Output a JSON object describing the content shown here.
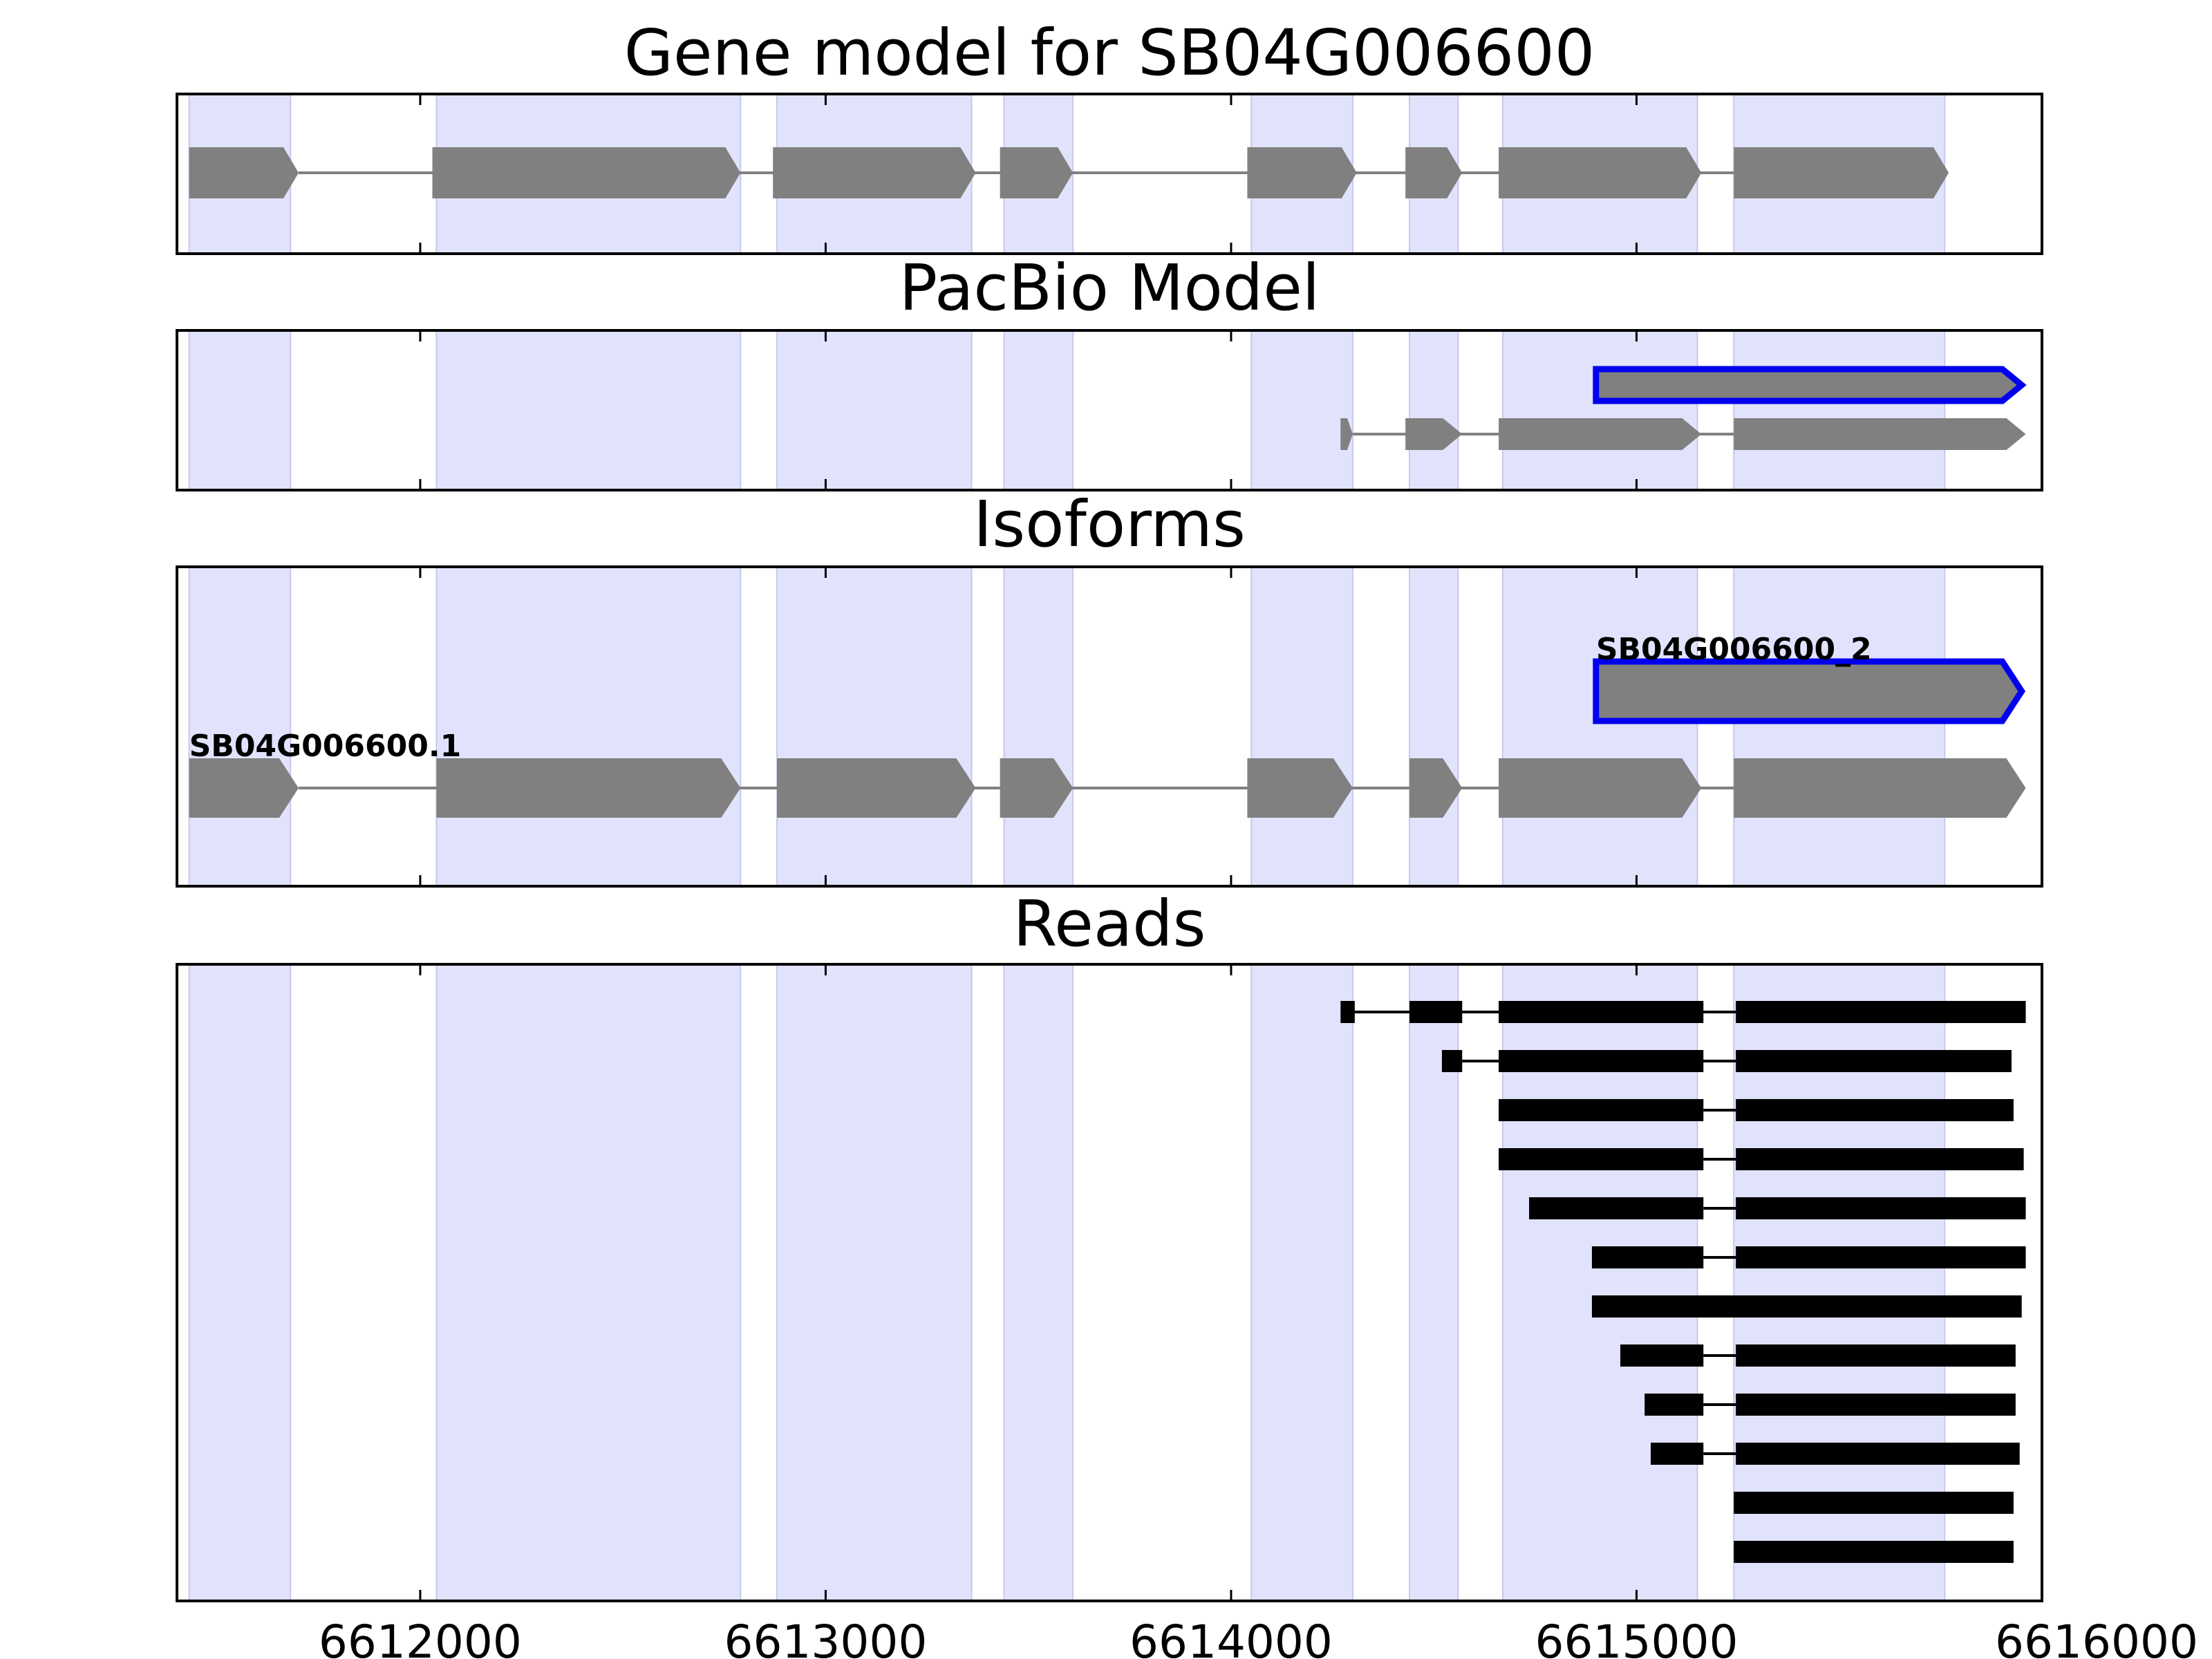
{
  "chart_data": {
    "type": "gene-track",
    "x_range": [
      6611400,
      6616000
    ],
    "x_ticks": [
      6612000,
      6613000,
      6614000,
      6615000,
      6616000
    ],
    "x_tick_labels": [
      "6612000",
      "6613000",
      "6614000",
      "6615000",
      "6616000"
    ],
    "exon_shading": [
      [
        6611430,
        6611680
      ],
      [
        6612040,
        6612790
      ],
      [
        6612880,
        6613360
      ],
      [
        6613440,
        6613610
      ],
      [
        6614050,
        6614300
      ],
      [
        6614440,
        6614560
      ],
      [
        6614670,
        6615150
      ],
      [
        6615240,
        6615760
      ]
    ],
    "colors": {
      "shading": "#e1e3fc",
      "shading_edge": "#c5c8ec",
      "exon": "#808080",
      "intron": "#808080",
      "highlight": "#0000ee",
      "read": "#000000"
    },
    "panels": [
      {
        "id": "gene-model",
        "title": "Gene model for SB04G006600",
        "tracks": [
          {
            "exons": [
              [
                6611430,
                6611700
              ],
              [
                6612030,
                6612790
              ],
              [
                6612870,
                6613370
              ],
              [
                6613430,
                6613610
              ],
              [
                6614040,
                6614310
              ],
              [
                6614430,
                6614570
              ],
              [
                6614660,
                6615160
              ],
              [
                6615240,
                6615770
              ]
            ]
          }
        ]
      },
      {
        "id": "pacbio-model",
        "title": "PacBio Model",
        "tracks": [
          {
            "highlight": true,
            "exons": [
              [
                6614900,
                6615950
              ]
            ]
          },
          {
            "exons": [
              [
                6614270,
                6614300
              ],
              [
                6614430,
                6614570
              ],
              [
                6614660,
                6615160
              ],
              [
                6615240,
                6615960
              ]
            ]
          }
        ]
      },
      {
        "id": "isoforms",
        "title": "Isoforms",
        "tracks": [
          {
            "name": "SB04G006600_2",
            "highlight": true,
            "exons": [
              [
                6614900,
                6615950
              ]
            ]
          },
          {
            "name": "SB04G006600.1",
            "exons": [
              [
                6611430,
                6611700
              ],
              [
                6612040,
                6612790
              ],
              [
                6612880,
                6613370
              ],
              [
                6613430,
                6613610
              ],
              [
                6614040,
                6614300
              ],
              [
                6614440,
                6614570
              ],
              [
                6614660,
                6615160
              ],
              [
                6615240,
                6615960
              ]
            ]
          }
        ]
      },
      {
        "id": "reads",
        "title": "Reads",
        "tracks": [
          {
            "blocks": [
              [
                6614270,
                6614305
              ],
              [
                6614440,
                6614570
              ],
              [
                6614660,
                6615165
              ],
              [
                6615245,
                6615960
              ]
            ]
          },
          {
            "blocks": [
              [
                6614520,
                6614570
              ],
              [
                6614660,
                6615165
              ],
              [
                6615245,
                6615925
              ]
            ]
          },
          {
            "blocks": [
              [
                6614660,
                6615165
              ],
              [
                6615245,
                6615930
              ]
            ]
          },
          {
            "blocks": [
              [
                6614660,
                6615165
              ],
              [
                6615245,
                6615955
              ]
            ]
          },
          {
            "blocks": [
              [
                6614735,
                6615165
              ],
              [
                6615245,
                6615960
              ]
            ]
          },
          {
            "blocks": [
              [
                6614890,
                6615165
              ],
              [
                6615245,
                6615960
              ]
            ]
          },
          {
            "blocks": [
              [
                6614890,
                6615950
              ]
            ]
          },
          {
            "blocks": [
              [
                6614960,
                6615165
              ],
              [
                6615245,
                6615935
              ]
            ]
          },
          {
            "blocks": [
              [
                6615020,
                6615165
              ],
              [
                6615245,
                6615935
              ]
            ]
          },
          {
            "blocks": [
              [
                6615035,
                6615165
              ],
              [
                6615245,
                6615945
              ]
            ]
          },
          {
            "blocks": [
              [
                6615240,
                6615930
              ]
            ]
          },
          {
            "blocks": [
              [
                6615240,
                6615930
              ]
            ]
          }
        ]
      }
    ]
  }
}
